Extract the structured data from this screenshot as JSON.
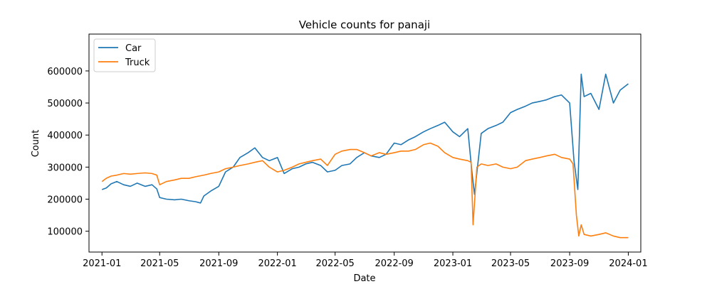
{
  "chart_data": {
    "type": "line",
    "title": "Vehicle counts for panaji",
    "xlabel": "Date",
    "ylabel": "Count",
    "xlim": [
      "2020-12-05",
      "2024-01-27"
    ],
    "ylim": [
      35000,
      715000
    ],
    "x_ticks": [
      "2021-01-01",
      "2021-05-01",
      "2021-09-01",
      "2022-01-01",
      "2022-05-01",
      "2022-09-01",
      "2023-01-01",
      "2023-05-01",
      "2023-09-01",
      "2024-01-01"
    ],
    "x_tick_labels": [
      "2021-01",
      "2021-05",
      "2021-09",
      "2022-01",
      "2022-05",
      "2022-09",
      "2023-01",
      "2023-05",
      "2023-09",
      "2024-01"
    ],
    "y_ticks": [
      100000,
      200000,
      300000,
      400000,
      500000,
      600000
    ],
    "y_tick_labels": [
      "100000",
      "200000",
      "300000",
      "400000",
      "500000",
      "600000"
    ],
    "grid": false,
    "legend_position": "top-left",
    "series": [
      {
        "name": "Car",
        "color": "#1f77b4",
        "x": [
          "2021-01-01",
          "2021-01-10",
          "2021-01-20",
          "2021-02-01",
          "2021-02-15",
          "2021-03-01",
          "2021-03-15",
          "2021-04-01",
          "2021-04-15",
          "2021-04-25",
          "2021-05-01",
          "2021-05-15",
          "2021-06-01",
          "2021-06-15",
          "2021-07-01",
          "2021-07-15",
          "2021-07-25",
          "2021-08-01",
          "2021-08-15",
          "2021-09-01",
          "2021-09-15",
          "2021-10-01",
          "2021-10-15",
          "2021-11-01",
          "2021-11-15",
          "2021-12-01",
          "2021-12-15",
          "2022-01-01",
          "2022-01-15",
          "2022-02-01",
          "2022-02-15",
          "2022-03-01",
          "2022-03-15",
          "2022-04-01",
          "2022-04-15",
          "2022-05-01",
          "2022-05-15",
          "2022-06-01",
          "2022-06-15",
          "2022-07-01",
          "2022-07-15",
          "2022-08-01",
          "2022-08-15",
          "2022-09-01",
          "2022-09-15",
          "2022-10-01",
          "2022-10-15",
          "2022-11-01",
          "2022-11-15",
          "2022-12-01",
          "2022-12-15",
          "2023-01-01",
          "2023-01-15",
          "2023-02-01",
          "2023-02-10",
          "2023-02-15",
          "2023-03-01",
          "2023-03-15",
          "2023-04-01",
          "2023-04-15",
          "2023-05-01",
          "2023-05-15",
          "2023-06-01",
          "2023-06-15",
          "2023-07-01",
          "2023-07-15",
          "2023-08-01",
          "2023-08-15",
          "2023-09-01",
          "2023-09-10",
          "2023-09-18",
          "2023-09-25",
          "2023-10-01",
          "2023-10-15",
          "2023-11-01",
          "2023-11-15",
          "2023-12-01",
          "2023-12-15",
          "2024-01-01"
        ],
        "values": [
          230000,
          235000,
          248000,
          255000,
          245000,
          240000,
          250000,
          240000,
          245000,
          232000,
          205000,
          200000,
          198000,
          200000,
          195000,
          192000,
          188000,
          210000,
          225000,
          240000,
          285000,
          300000,
          330000,
          345000,
          360000,
          330000,
          320000,
          330000,
          280000,
          295000,
          300000,
          310000,
          315000,
          305000,
          285000,
          290000,
          305000,
          310000,
          330000,
          345000,
          335000,
          330000,
          340000,
          375000,
          370000,
          385000,
          395000,
          410000,
          420000,
          430000,
          440000,
          410000,
          395000,
          420000,
          280000,
          215000,
          405000,
          420000,
          430000,
          440000,
          470000,
          480000,
          490000,
          500000,
          505000,
          510000,
          520000,
          525000,
          500000,
          320000,
          230000,
          590000,
          520000,
          530000,
          480000,
          590000,
          500000,
          540000,
          560000
        ]
      },
      {
        "name": "Truck",
        "color": "#ff7f0e",
        "x": [
          "2021-01-01",
          "2021-01-10",
          "2021-01-20",
          "2021-02-01",
          "2021-02-15",
          "2021-03-01",
          "2021-03-15",
          "2021-04-01",
          "2021-04-15",
          "2021-04-25",
          "2021-05-01",
          "2021-05-15",
          "2021-06-01",
          "2021-06-15",
          "2021-07-01",
          "2021-07-15",
          "2021-08-01",
          "2021-08-15",
          "2021-09-01",
          "2021-09-15",
          "2021-10-01",
          "2021-10-15",
          "2021-11-01",
          "2021-11-15",
          "2021-12-01",
          "2021-12-15",
          "2022-01-01",
          "2022-01-15",
          "2022-02-01",
          "2022-02-15",
          "2022-03-01",
          "2022-03-15",
          "2022-04-01",
          "2022-04-15",
          "2022-05-01",
          "2022-05-15",
          "2022-06-01",
          "2022-06-15",
          "2022-07-01",
          "2022-07-15",
          "2022-08-01",
          "2022-08-15",
          "2022-09-01",
          "2022-09-15",
          "2022-10-01",
          "2022-10-15",
          "2022-11-01",
          "2022-11-15",
          "2022-12-01",
          "2022-12-15",
          "2023-01-01",
          "2023-01-15",
          "2023-02-01",
          "2023-02-08",
          "2023-02-12",
          "2023-02-20",
          "2023-03-01",
          "2023-03-15",
          "2023-04-01",
          "2023-04-15",
          "2023-05-01",
          "2023-05-15",
          "2023-06-01",
          "2023-06-15",
          "2023-07-01",
          "2023-07-15",
          "2023-08-01",
          "2023-08-15",
          "2023-09-01",
          "2023-09-08",
          "2023-09-15",
          "2023-09-20",
          "2023-09-25",
          "2023-10-01",
          "2023-10-15",
          "2023-11-01",
          "2023-11-15",
          "2023-12-01",
          "2023-12-15",
          "2024-01-01"
        ],
        "values": [
          255000,
          265000,
          272000,
          275000,
          280000,
          278000,
          280000,
          282000,
          280000,
          275000,
          245000,
          255000,
          260000,
          265000,
          265000,
          270000,
          275000,
          280000,
          285000,
          295000,
          300000,
          305000,
          310000,
          315000,
          320000,
          300000,
          285000,
          290000,
          300000,
          310000,
          315000,
          320000,
          325000,
          305000,
          340000,
          350000,
          355000,
          355000,
          345000,
          335000,
          345000,
          340000,
          345000,
          350000,
          350000,
          355000,
          370000,
          375000,
          365000,
          345000,
          330000,
          325000,
          320000,
          315000,
          120000,
          300000,
          310000,
          305000,
          310000,
          300000,
          295000,
          300000,
          320000,
          325000,
          330000,
          335000,
          340000,
          330000,
          325000,
          310000,
          150000,
          85000,
          120000,
          90000,
          85000,
          90000,
          95000,
          85000,
          80000,
          80000
        ]
      }
    ]
  }
}
